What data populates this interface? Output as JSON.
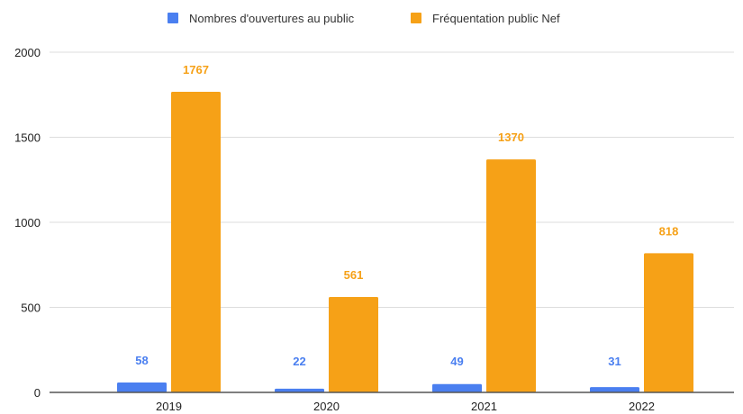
{
  "chart_data": {
    "type": "bar",
    "categories": [
      "2019",
      "2020",
      "2021",
      "2022"
    ],
    "series": [
      {
        "name": "Nombres d'ouvertures au public",
        "values": [
          58,
          22,
          49,
          31
        ],
        "color": "#4a7ff0"
      },
      {
        "name": "Fréquentation public Nef",
        "values": [
          1767,
          561,
          1370,
          818
        ],
        "color": "#f6a117"
      }
    ],
    "value_labels": [
      [
        "58",
        "22",
        "49",
        "31"
      ],
      [
        "1767",
        "561",
        "1370",
        "818"
      ]
    ],
    "yticks": [
      "0",
      "500",
      "1000",
      "1500",
      "2000"
    ],
    "ylim": [
      0,
      2000
    ],
    "grid": true,
    "legend_position": "top-center"
  }
}
